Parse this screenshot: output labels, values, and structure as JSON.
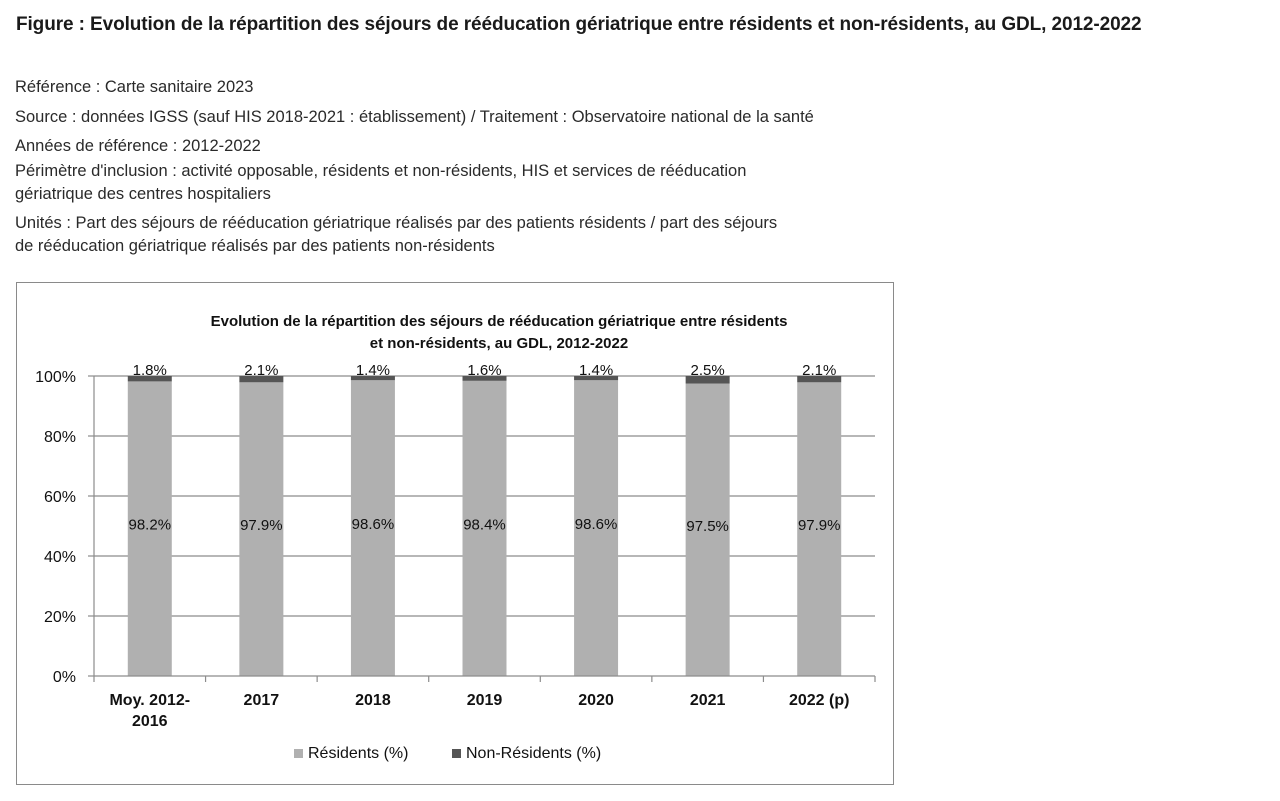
{
  "figure": {
    "title": "Figure : Evolution de la répartition des séjours de rééducation gériatrique entre résidents et non-résidents, au GDL, 2012-2022",
    "reference": "Référence : Carte sanitaire 2023",
    "source": "Source : données IGSS (sauf HIS 2018-2021 : établissement) / Traitement : Observatoire national de la santé",
    "annees": "Années de référence : 2012-2022",
    "perimetre_1": "Périmètre d'inclusion : activité opposable, résidents et non-résidents, HIS et services de rééducation",
    "perimetre_2": "gériatrique des centres hospitaliers",
    "unites_1": "Unités : Part des séjours de rééducation gériatrique réalisés par des patients résidents / part des séjours",
    "unites_2": "de rééducation gériatrique réalisés par des patients non-résidents"
  },
  "chart_data": {
    "type": "bar",
    "stacked": true,
    "title_line1": "Evolution de la répartition des séjours de rééducation gériatrique entre résidents",
    "title_line2": "et non-résidents, au GDL, 2012-2022",
    "categories": [
      [
        "Moy. 2012-",
        "2016"
      ],
      [
        "2017"
      ],
      [
        "2018"
      ],
      [
        "2019"
      ],
      [
        "2020"
      ],
      [
        "2021"
      ],
      [
        "2022 (p)"
      ]
    ],
    "series": [
      {
        "name": "Résidents (%)",
        "color": "#b0b0b0",
        "values": [
          98.2,
          97.9,
          98.6,
          98.4,
          98.6,
          97.5,
          97.9
        ],
        "labels": [
          "98.2%",
          "97.9%",
          "98.6%",
          "98.4%",
          "98.6%",
          "97.5%",
          "97.9%"
        ]
      },
      {
        "name": "Non-Résidents (%)",
        "color": "#555555",
        "values": [
          1.8,
          2.1,
          1.4,
          1.6,
          1.4,
          2.5,
          2.1
        ],
        "labels": [
          "1.8%",
          "2.1%",
          "1.4%",
          "1.6%",
          "1.4%",
          "2.5%",
          "2.1%"
        ]
      }
    ],
    "yticks": [
      "0%",
      "20%",
      "40%",
      "60%",
      "80%",
      "100%"
    ],
    "ylim": [
      0,
      100
    ],
    "grid": true,
    "legend_position": "bottom"
  }
}
